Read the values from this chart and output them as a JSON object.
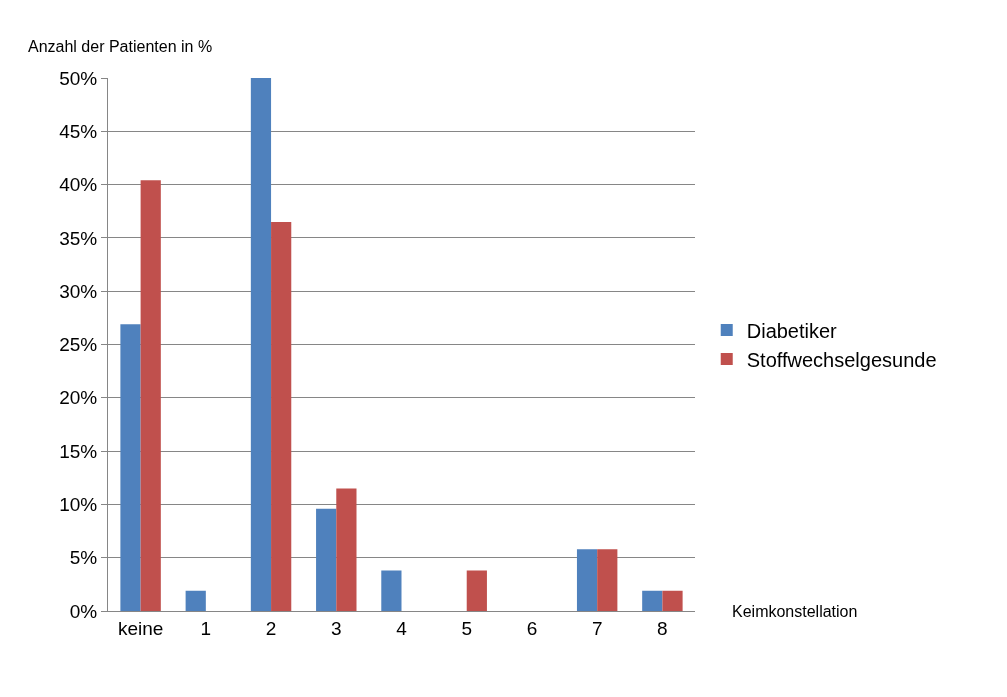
{
  "chart_data": {
    "type": "bar",
    "ylabel": "Anzahl der Patienten in %",
    "xlabel": "Keimkonstellation",
    "categories": [
      "keine",
      "1",
      "2",
      "3",
      "4",
      "5",
      "6",
      "7",
      "8"
    ],
    "series": [
      {
        "name": "Diabetiker",
        "color": "#4f81bd",
        "values": [
          26.9,
          1.9,
          50,
          9.6,
          3.8,
          0,
          0,
          5.8,
          1.9
        ]
      },
      {
        "name": "Stoffwechselgesunde",
        "color": "#c0504d",
        "values": [
          40.4,
          0,
          36.5,
          11.5,
          0,
          3.8,
          0,
          5.8,
          1.9
        ]
      }
    ],
    "ylim": [
      0,
      50
    ],
    "yticks": [
      {
        "value": 0,
        "label": "0%"
      },
      {
        "value": 5,
        "label": "5%"
      },
      {
        "value": 10,
        "label": "10%"
      },
      {
        "value": 15,
        "label": "15%"
      },
      {
        "value": 20,
        "label": "20%"
      },
      {
        "value": 25,
        "label": "25%"
      },
      {
        "value": 30,
        "label": "30%"
      },
      {
        "value": 35,
        "label": "35%"
      },
      {
        "value": 40,
        "label": "40%"
      },
      {
        "value": 45,
        "label": "45%"
      },
      {
        "value": 50,
        "label": "50%"
      }
    ],
    "grid": "y",
    "legend": "right"
  }
}
